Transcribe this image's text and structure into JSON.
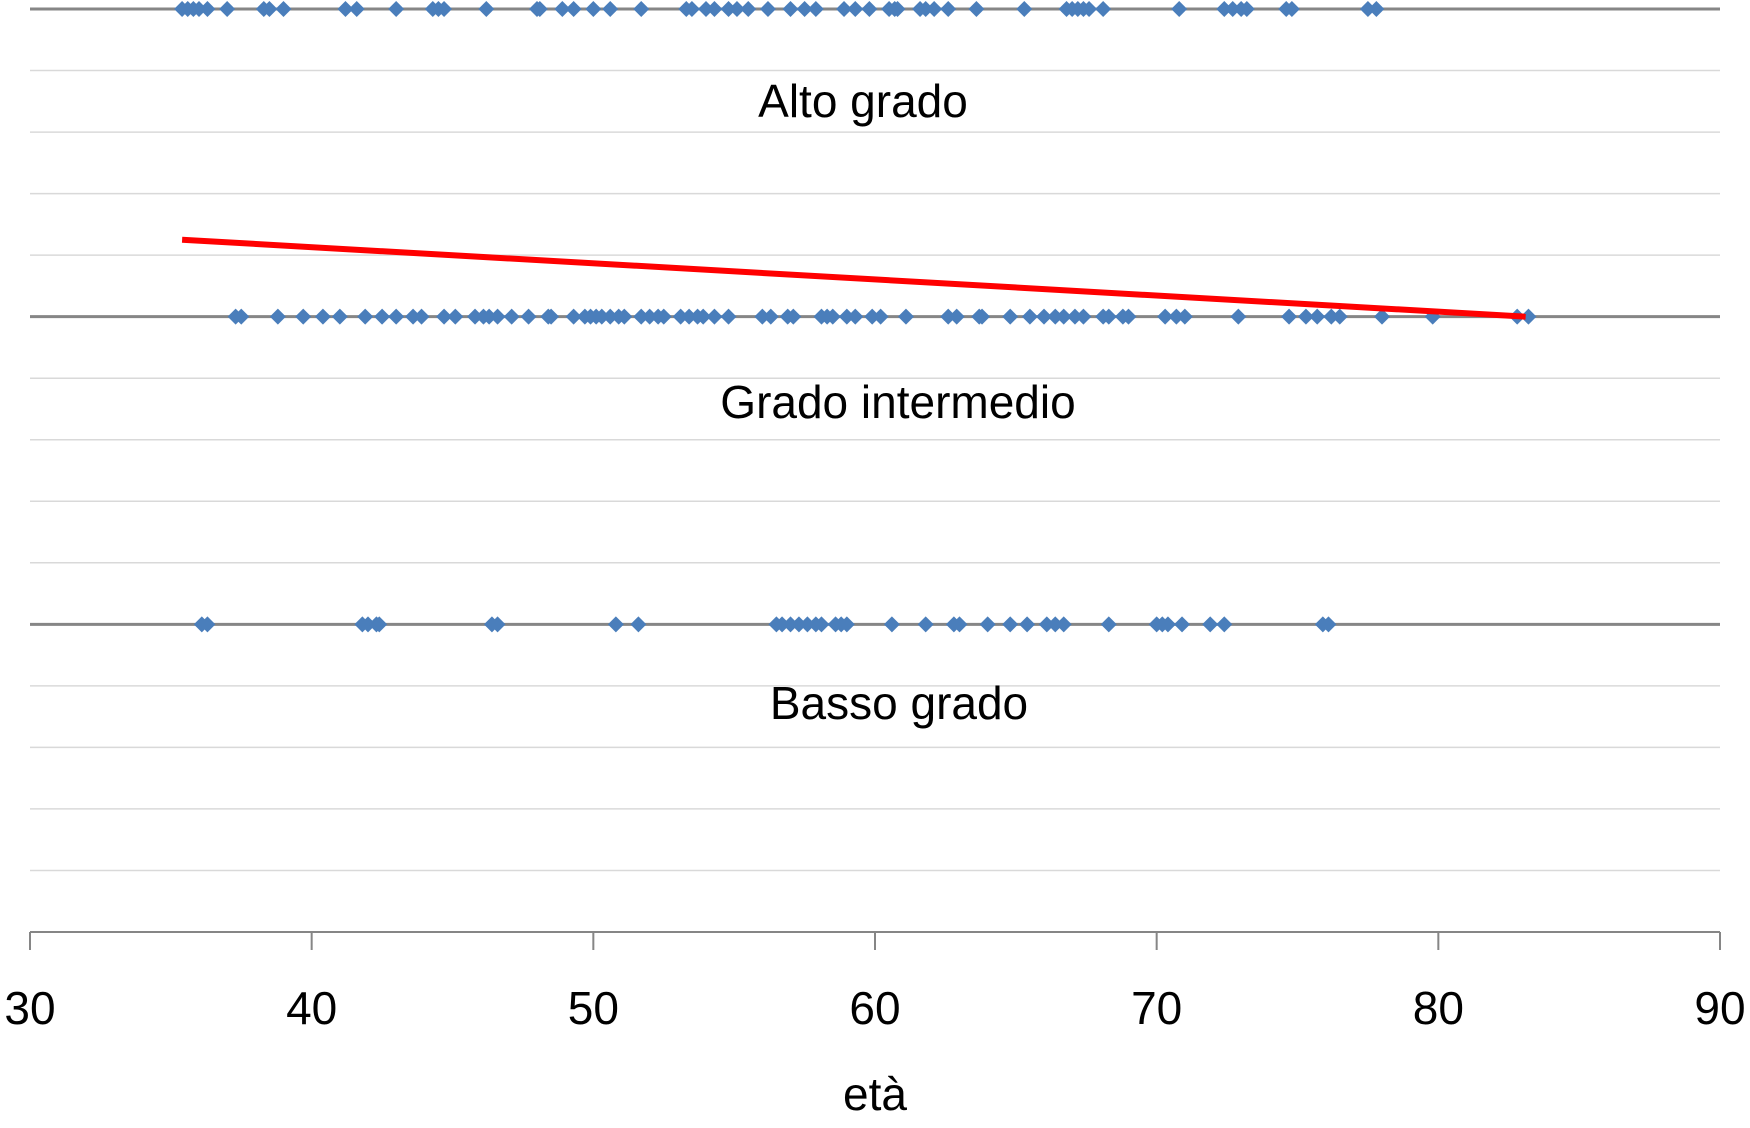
{
  "chart_data": {
    "type": "scatter",
    "xlabel": "età",
    "annotations": [
      "Alto grado",
      "Grado intermedio",
      "Basso grado"
    ],
    "xlim": [
      30,
      90
    ],
    "xticks": [
      30,
      40,
      50,
      60,
      70,
      80,
      90
    ],
    "ylim": [
      0,
      3
    ],
    "yticks": [
      0,
      0.2,
      0.4,
      0.6,
      0.8,
      1,
      1.2,
      1.4,
      1.6,
      1.8,
      2,
      2.2,
      2.4,
      2.6,
      2.8,
      3
    ],
    "grid": true,
    "series": [
      {
        "color": "#4a7ebb",
        "marker": "diamond",
        "x": [
          35.4,
          35.6,
          35.8,
          36.0,
          36.3,
          37.0,
          38.3,
          38.5,
          39.0,
          41.2,
          41.6,
          43.0,
          44.3,
          44.5,
          44.7,
          46.2,
          48.0,
          48.1,
          48.9,
          49.3,
          50.0,
          50.6,
          51.7,
          53.3,
          53.5,
          54.0,
          54.3,
          54.8,
          55.1,
          55.5,
          56.2,
          57.0,
          57.5,
          57.9,
          58.9,
          59.3,
          59.8,
          60.5,
          60.7,
          60.8,
          61.6,
          61.8,
          62.1,
          62.6,
          63.6,
          65.3,
          66.8,
          67.0,
          67.2,
          67.4,
          67.6,
          68.1,
          70.8,
          72.4,
          72.7,
          73.0,
          73.2,
          74.6,
          74.8,
          77.5,
          77.8
        ],
        "values": [
          3,
          3,
          3,
          3,
          3,
          3,
          3,
          3,
          3,
          3,
          3,
          3,
          3,
          3,
          3,
          3,
          3,
          3,
          3,
          3,
          3,
          3,
          3,
          3,
          3,
          3,
          3,
          3,
          3,
          3,
          3,
          3,
          3,
          3,
          3,
          3,
          3,
          3,
          3,
          3,
          3,
          3,
          3,
          3,
          3,
          3,
          3,
          3,
          3,
          3,
          3,
          3,
          3,
          3,
          3,
          3,
          3,
          3,
          3,
          3,
          3
        ]
      },
      {
        "color": "#4a7ebb",
        "marker": "diamond",
        "x": [
          37.3,
          37.5,
          38.8,
          39.7,
          40.4,
          41.0,
          41.9,
          42.5,
          43.0,
          43.6,
          43.9,
          44.7,
          45.1,
          45.8,
          46.1,
          46.3,
          46.6,
          47.1,
          47.7,
          48.4,
          48.5,
          49.3,
          49.7,
          49.9,
          50.1,
          50.3,
          50.6,
          50.9,
          51.1,
          51.7,
          52.0,
          52.3,
          52.5,
          53.1,
          53.4,
          53.7,
          53.9,
          54.3,
          54.8,
          56.0,
          56.3,
          56.9,
          57.1,
          58.1,
          58.3,
          58.5,
          59.0,
          59.3,
          59.9,
          60.2,
          61.1,
          62.6,
          62.9,
          63.7,
          63.8,
          64.8,
          65.5,
          66.0,
          66.4,
          66.7,
          67.1,
          67.4,
          68.1,
          68.3,
          68.8,
          69.0,
          70.3,
          70.7,
          71.0,
          72.9,
          74.7,
          75.3,
          75.7,
          76.2,
          76.5,
          78.0,
          79.8,
          82.8,
          83.2
        ],
        "values": [
          2,
          2,
          2,
          2,
          2,
          2,
          2,
          2,
          2,
          2,
          2,
          2,
          2,
          2,
          2,
          2,
          2,
          2,
          2,
          2,
          2,
          2,
          2,
          2,
          2,
          2,
          2,
          2,
          2,
          2,
          2,
          2,
          2,
          2,
          2,
          2,
          2,
          2,
          2,
          2,
          2,
          2,
          2,
          2,
          2,
          2,
          2,
          2,
          2,
          2,
          2,
          2,
          2,
          2,
          2,
          2,
          2,
          2,
          2,
          2,
          2,
          2,
          2,
          2,
          2,
          2,
          2,
          2,
          2,
          2,
          2,
          2,
          2,
          2,
          2,
          2,
          2,
          2,
          2
        ]
      },
      {
        "color": "#4a7ebb",
        "marker": "diamond",
        "x": [
          36.1,
          36.3,
          41.8,
          42.0,
          42.3,
          42.4,
          46.4,
          46.6,
          50.8,
          51.6,
          56.5,
          56.7,
          57.0,
          57.3,
          57.6,
          57.9,
          58.1,
          58.6,
          58.8,
          59.0,
          60.6,
          61.8,
          62.8,
          63.0,
          64.0,
          64.8,
          65.4,
          66.1,
          66.4,
          66.7,
          68.3,
          70.0,
          70.2,
          70.4,
          70.9,
          71.9,
          72.4,
          75.9,
          76.1
        ],
        "values": [
          1,
          1,
          1,
          1,
          1,
          1,
          1,
          1,
          1,
          1,
          1,
          1,
          1,
          1,
          1,
          1,
          1,
          1,
          1,
          1,
          1,
          1,
          1,
          1,
          1,
          1,
          1,
          1,
          1,
          1,
          1,
          1,
          1,
          1,
          1,
          1,
          1,
          1,
          1
        ]
      },
      {
        "color": "#ff0000",
        "marker": "line",
        "x": [
          35.4,
          83.1
        ],
        "values": [
          2.25,
          2.0
        ]
      }
    ]
  }
}
